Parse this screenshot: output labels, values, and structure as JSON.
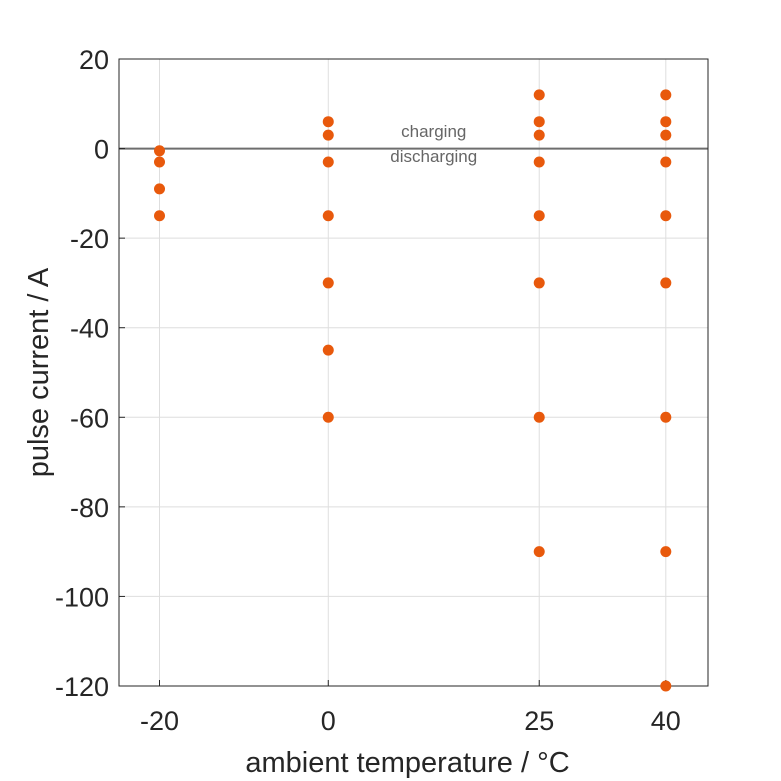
{
  "chart_data": {
    "type": "scatter",
    "title": "",
    "xlabel": "ambient temperature / °C",
    "ylabel": "pulse current / A",
    "x_ticks": [
      -20,
      0,
      25,
      40
    ],
    "y_ticks": [
      20,
      0,
      -20,
      -40,
      -60,
      -80,
      -100,
      -120
    ],
    "xlim": [
      -24.8,
      45
    ],
    "ylim": [
      -120,
      20
    ],
    "grid": true,
    "reference_line": 0,
    "annotations": [
      {
        "text": "charging",
        "x": 12.5,
        "y": 2.6
      },
      {
        "text": "discharging",
        "x": 12.5,
        "y": -3.0
      }
    ],
    "marker_color": "#e8590c",
    "series": [
      {
        "points": [
          {
            "x": -20,
            "y": -0.5
          },
          {
            "x": -20,
            "y": -3
          },
          {
            "x": -20,
            "y": -9
          },
          {
            "x": -20,
            "y": -15
          },
          {
            "x": 0,
            "y": 6
          },
          {
            "x": 0,
            "y": 3
          },
          {
            "x": 0,
            "y": -3
          },
          {
            "x": 0,
            "y": -15
          },
          {
            "x": 0,
            "y": -30
          },
          {
            "x": 0,
            "y": -45
          },
          {
            "x": 0,
            "y": -60
          },
          {
            "x": 25,
            "y": 12
          },
          {
            "x": 25,
            "y": 6
          },
          {
            "x": 25,
            "y": 3
          },
          {
            "x": 25,
            "y": -3
          },
          {
            "x": 25,
            "y": -15
          },
          {
            "x": 25,
            "y": -30
          },
          {
            "x": 25,
            "y": -60
          },
          {
            "x": 25,
            "y": -90
          },
          {
            "x": 40,
            "y": 12
          },
          {
            "x": 40,
            "y": 6
          },
          {
            "x": 40,
            "y": 3
          },
          {
            "x": 40,
            "y": -3
          },
          {
            "x": 40,
            "y": -15
          },
          {
            "x": 40,
            "y": -30
          },
          {
            "x": 40,
            "y": -60
          },
          {
            "x": 40,
            "y": -90
          },
          {
            "x": 40,
            "y": -120
          }
        ]
      }
    ]
  }
}
